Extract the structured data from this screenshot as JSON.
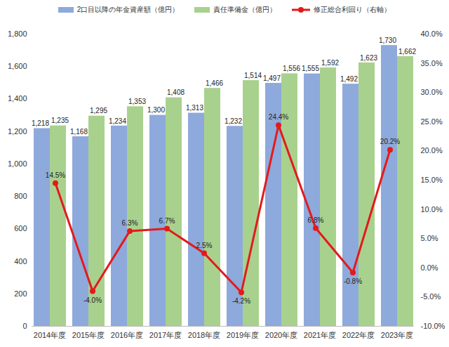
{
  "chart_data": {
    "type": "bar",
    "categories": [
      "2014年度",
      "2015年度",
      "2016年度",
      "2017年度",
      "2018年度",
      "2019年度",
      "2020年度",
      "2021年度",
      "2022年度",
      "2023年度"
    ],
    "series": [
      {
        "name": "2口目以降の年金資産額（億円）",
        "type": "bar",
        "color": "#8EA9DB",
        "values": [
          1218,
          1168,
          1234,
          1300,
          1313,
          1232,
          1497,
          1555,
          1492,
          1730
        ],
        "value_labels": [
          "1,218",
          "1,168",
          "1,234",
          "1,300",
          "1,313",
          "1,232",
          "1,497",
          "1,555",
          "1,492",
          "1,730"
        ]
      },
      {
        "name": "責任準備金（億円）",
        "type": "bar",
        "color": "#A9D18E",
        "values": [
          1235,
          1295,
          1353,
          1408,
          1466,
          1514,
          1556,
          1592,
          1623,
          1662
        ],
        "value_labels": [
          "1,235",
          "1,295",
          "1,353",
          "1,408",
          "1,466",
          "1,514",
          "1,556",
          "1,592",
          "1,623",
          "1,662"
        ]
      },
      {
        "name": "修正総合利回り（右軸）",
        "type": "line",
        "axis": "y2",
        "color": "#E31A1C",
        "marker": "circle",
        "values": [
          14.5,
          -4.0,
          6.3,
          6.7,
          2.5,
          -4.2,
          24.4,
          6.8,
          -0.8,
          20.2
        ],
        "value_labels": [
          "14.5%",
          "-4.0%",
          "6.3%",
          "6.7%",
          "2.5%",
          "-4.2%",
          "24.4%",
          "6.8%",
          "-0.8%",
          "20.2%"
        ]
      }
    ],
    "ylim": [
      0,
      1800
    ],
    "yticks": [
      0,
      200,
      400,
      600,
      800,
      {
        "value": 1000,
        "label": "1,000"
      },
      {
        "value": 1200,
        "label": "1,200"
      },
      {
        "value": 1400,
        "label": "1,400"
      },
      {
        "value": 1600,
        "label": "1,600"
      },
      {
        "value": 1800,
        "label": "1,800"
      }
    ],
    "y2lim": [
      -10,
      40
    ],
    "y2ticks": [
      {
        "value": -10,
        "label": "-10.0%"
      },
      {
        "value": -5,
        "label": "-5.0%"
      },
      {
        "value": 0,
        "label": "0.0%"
      },
      {
        "value": 5,
        "label": "5.0%"
      },
      {
        "value": 10,
        "label": "10.0%"
      },
      {
        "value": 15,
        "label": "15.0%"
      },
      {
        "value": 20,
        "label": "20.0%"
      },
      {
        "value": 25,
        "label": "25.0%"
      },
      {
        "value": 30,
        "label": "30.0%"
      },
      {
        "value": 35,
        "label": "35.0%"
      },
      {
        "value": 40,
        "label": "40.0%"
      }
    ],
    "legend": "top",
    "data_labels": true,
    "grid": false
  }
}
